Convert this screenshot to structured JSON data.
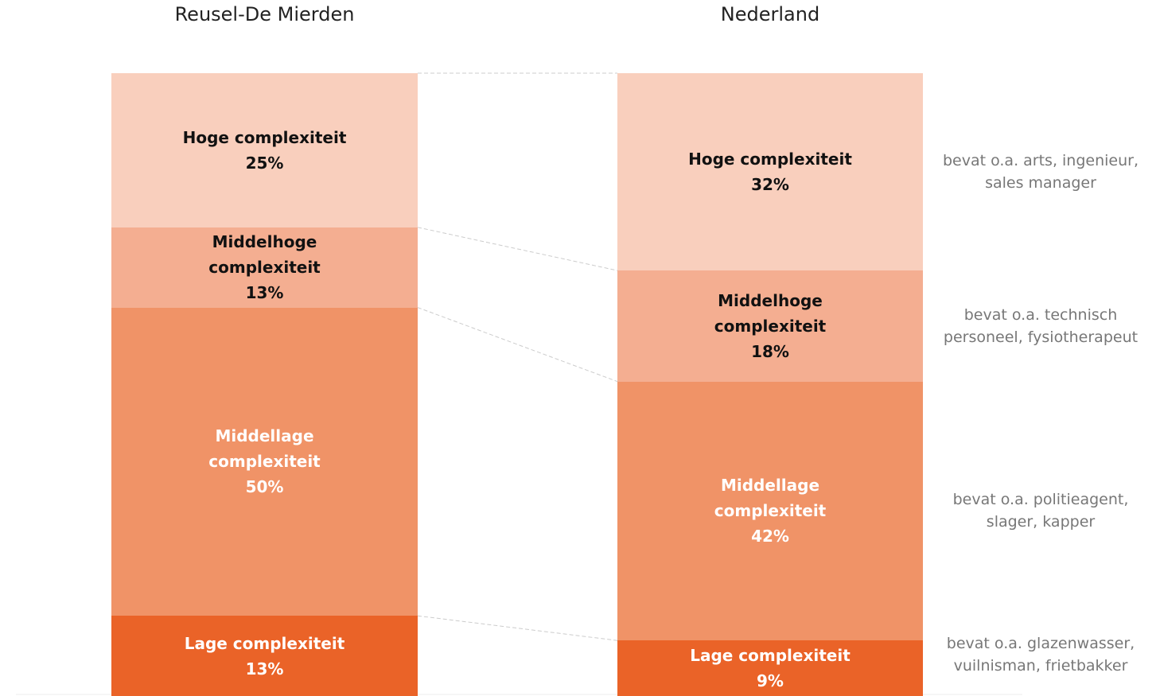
{
  "chart_data": {
    "type": "stacked_bar",
    "categories": [
      "Reusel-De Mierden",
      "Nederland"
    ],
    "series": [
      {
        "name": "Lage complexiteit",
        "color": "#ea6328",
        "text_color": "#ffffff",
        "values": [
          13,
          9
        ],
        "value_labels": [
          "13%",
          "9%"
        ]
      },
      {
        "name": "Middellage complexiteit",
        "color": "#f09367",
        "text_color": "#ffffff",
        "values": [
          50,
          42
        ],
        "value_labels": [
          "50%",
          "42%"
        ]
      },
      {
        "name": "Middelhoge complexiteit",
        "color": "#f4ae91",
        "text_color": "#111111",
        "values": [
          13,
          18
        ],
        "value_labels": [
          "13%",
          "18%"
        ]
      },
      {
        "name": "Hoge complexiteit",
        "color": "#f9cfbd",
        "text_color": "#111111",
        "values": [
          25,
          32
        ],
        "value_labels": [
          "25%",
          "32%"
        ]
      }
    ],
    "annotations": [
      "bevat o.a. glazenwasser, vuilnisman, frietbakker",
      "bevat o.a. politieagent, slager, kapper",
      "bevat o.a. technisch personeel, fysiotherapeut",
      "bevat o.a. arts, ingenieur, sales manager"
    ]
  }
}
